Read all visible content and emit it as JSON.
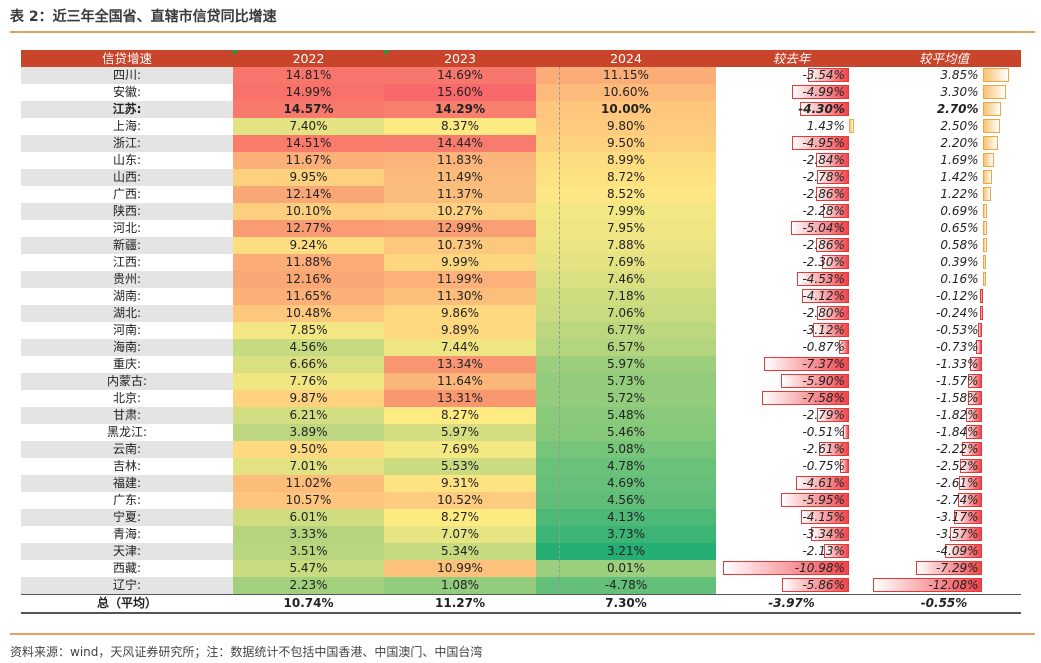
{
  "title": "表 2：近三年全国省、直辖市信贷同比增速",
  "footnote": "资料来源：wind，天风证券研究所；注：数据统计不包括中国香港、中国澳门、中国台湾",
  "headers": {
    "name": "信贷增速",
    "y2022": "2022",
    "y2023": "2023",
    "y2024": "2024",
    "dy": "较去年",
    "da": "较平均值"
  },
  "colors": {
    "header": "#c8442a",
    "rule": "#e8a060",
    "neg_bar": "#f0454c",
    "pos_bar": "#f9c271"
  },
  "rows": [
    {
      "name": "四川:",
      "v2022": "14.81%",
      "v2023": "14.69%",
      "v2024": "11.15%",
      "dy": "-3.54%",
      "da": "3.85%",
      "dyv": -3.54,
      "dav": 3.85,
      "c1": "#f8756b",
      "c2": "#f8776c",
      "c3": "#fbad78"
    },
    {
      "name": "安徽:",
      "v2022": "14.99%",
      "v2023": "15.60%",
      "v2024": "10.60%",
      "dy": "-4.99%",
      "da": "3.30%",
      "dyv": -4.99,
      "dav": 3.3,
      "c1": "#f8716a",
      "c2": "#f8696b",
      "c3": "#fcba7b"
    },
    {
      "name": "江苏:",
      "v2022": "14.57%",
      "v2023": "14.29%",
      "v2024": "10.00%",
      "dy": "-4.30%",
      "da": "2.70%",
      "dyv": -4.3,
      "dav": 2.7,
      "c1": "#f87a6c",
      "c2": "#f87f6d",
      "c3": "#fec77d",
      "bold": true
    },
    {
      "name": "上海:",
      "v2022": "7.40%",
      "v2023": "8.37%",
      "v2024": "9.80%",
      "dy": "1.43%",
      "da": "2.50%",
      "dyv": 1.43,
      "dav": 2.5,
      "c1": "#e3e383",
      "c2": "#feea83",
      "c3": "#fecb7e"
    },
    {
      "name": "浙江:",
      "v2022": "14.51%",
      "v2023": "14.44%",
      "v2024": "9.50%",
      "dy": "-4.95%",
      "da": "2.20%",
      "dyv": -4.95,
      "dav": 2.2,
      "c1": "#f87b6c",
      "c2": "#f87c6d",
      "c3": "#fed17f"
    },
    {
      "name": "山东:",
      "v2022": "11.67%",
      "v2023": "11.83%",
      "v2024": "8.99%",
      "dy": "-2.84%",
      "da": "1.69%",
      "dyv": -2.84,
      "dav": 1.69,
      "c1": "#fbb078",
      "c2": "#fbb479",
      "c3": "#fedd81"
    },
    {
      "name": "山西:",
      "v2022": "9.95%",
      "v2023": "11.49%",
      "v2024": "8.72%",
      "dy": "-2.78%",
      "da": "1.42%",
      "dyv": -2.78,
      "dav": 1.42,
      "c1": "#fed17f",
      "c2": "#fbbb7b",
      "c3": "#fee282"
    },
    {
      "name": "广西:",
      "v2022": "12.14%",
      "v2023": "11.37%",
      "v2024": "8.52%",
      "dy": "-2.86%",
      "da": "1.22%",
      "dyv": -2.86,
      "dav": 1.22,
      "c1": "#faa776",
      "c2": "#fbbd7b",
      "c3": "#fde683"
    },
    {
      "name": "陕西:",
      "v2022": "10.10%",
      "v2023": "10.27%",
      "v2024": "7.99%",
      "dy": "-2.28%",
      "da": "0.69%",
      "dyv": -2.28,
      "dav": 0.69,
      "c1": "#fdce7e",
      "c2": "#fdd17f",
      "c3": "#f1e783"
    },
    {
      "name": "河北:",
      "v2022": "12.77%",
      "v2023": "12.99%",
      "v2024": "7.95%",
      "dy": "-5.04%",
      "da": "0.65%",
      "dyv": -5.04,
      "dav": 0.65,
      "c1": "#f99b73",
      "c2": "#fa9f74",
      "c3": "#efe683"
    },
    {
      "name": "新疆:",
      "v2022": "9.24%",
      "v2023": "10.73%",
      "v2024": "7.88%",
      "dy": "-2.86%",
      "da": "0.58%",
      "dyv": -2.86,
      "dav": 0.58,
      "c1": "#fede81",
      "c2": "#fcc87d",
      "c3": "#ece583"
    },
    {
      "name": "江西:",
      "v2022": "11.88%",
      "v2023": "9.99%",
      "v2024": "7.69%",
      "dy": "-2.30%",
      "da": "0.39%",
      "dyv": -2.3,
      "dav": 0.39,
      "c1": "#fbac77",
      "c2": "#fdd680",
      "c3": "#e4e383"
    },
    {
      "name": "贵州:",
      "v2022": "12.16%",
      "v2023": "11.99%",
      "v2024": "7.46%",
      "dy": "-4.53%",
      "da": "0.16%",
      "dyv": -4.53,
      "dav": 0.16,
      "c1": "#faa776",
      "c2": "#fbb179",
      "c3": "#dae081"
    },
    {
      "name": "湖南:",
      "v2022": "11.65%",
      "v2023": "11.30%",
      "v2024": "7.18%",
      "dy": "-4.12%",
      "da": "-0.12%",
      "dyv": -4.12,
      "dav": -0.12,
      "c1": "#fbb078",
      "c2": "#fbbe7b",
      "c3": "#cedd80"
    },
    {
      "name": "湖北:",
      "v2022": "10.48%",
      "v2023": "9.86%",
      "v2024": "7.06%",
      "dy": "-2.80%",
      "da": "-0.24%",
      "dyv": -2.8,
      "dav": -0.24,
      "c1": "#fdc77d",
      "c2": "#fed980",
      "c3": "#c8db7f"
    },
    {
      "name": "河南:",
      "v2022": "7.85%",
      "v2023": "9.89%",
      "v2024": "6.77%",
      "dy": "-3.12%",
      "da": "-0.53%",
      "dyv": -3.12,
      "dav": -0.53,
      "c1": "#f2e783",
      "c2": "#fed880",
      "c3": "#bcd87f"
    },
    {
      "name": "海南:",
      "v2022": "4.56%",
      "v2023": "7.44%",
      "v2024": "6.57%",
      "dy": "-0.87%",
      "da": "-0.73%",
      "dyv": -0.87,
      "dav": -0.73,
      "c1": "#c6da7f",
      "c2": "#eee683",
      "c3": "#b3d57e"
    },
    {
      "name": "重庆:",
      "v2022": "6.66%",
      "v2023": "13.34%",
      "v2024": "5.97%",
      "dy": "-7.37%",
      "da": "-1.33%",
      "dyv": -7.37,
      "dav": -1.33,
      "c1": "#dae081",
      "c2": "#f99671",
      "c3": "#9ccf7d"
    },
    {
      "name": "内蒙古:",
      "v2022": "7.76%",
      "v2023": "11.64%",
      "v2024": "5.73%",
      "dy": "-5.90%",
      "da": "-1.57%",
      "dyv": -5.9,
      "dav": -1.57,
      "c1": "#f0e783",
      "c2": "#fbb779",
      "c3": "#92cc7c"
    },
    {
      "name": "北京:",
      "v2022": "9.87%",
      "v2023": "13.31%",
      "v2024": "5.72%",
      "dy": "-7.58%",
      "da": "-1.58%",
      "dyv": -7.58,
      "dav": -1.58,
      "c1": "#fed27f",
      "c2": "#f99771",
      "c3": "#92cc7c"
    },
    {
      "name": "甘肃:",
      "v2022": "6.21%",
      "v2023": "8.27%",
      "v2024": "5.48%",
      "dy": "-2.79%",
      "da": "-1.82%",
      "dyv": -2.79,
      "dav": -1.82,
      "c1": "#d2de81",
      "c2": "#feec83",
      "c3": "#88c97b"
    },
    {
      "name": "黑龙江:",
      "v2022": "3.89%",
      "v2023": "5.97%",
      "v2024": "5.46%",
      "dy": "-0.51%",
      "da": "-1.84%",
      "dyv": -0.51,
      "dav": -1.84,
      "c1": "#bcd77f",
      "c2": "#d4de81",
      "c3": "#87c97b"
    },
    {
      "name": "云南:",
      "v2022": "9.50%",
      "v2023": "7.69%",
      "v2024": "5.08%",
      "dy": "-2.61%",
      "da": "-2.22%",
      "dyv": -2.61,
      "dav": -2.22,
      "c1": "#fed980",
      "c2": "#f4e883",
      "c3": "#77c57a"
    },
    {
      "name": "吉林:",
      "v2022": "7.01%",
      "v2023": "5.53%",
      "v2024": "4.78%",
      "dy": "-0.75%",
      "da": "-2.52%",
      "dyv": -0.75,
      "dav": -2.52,
      "c1": "#e2e282",
      "c2": "#cadb80",
      "c3": "#6ac179"
    },
    {
      "name": "福建:",
      "v2022": "11.02%",
      "v2023": "9.31%",
      "v2024": "4.69%",
      "dy": "-4.61%",
      "da": "-2.61%",
      "dyv": -4.61,
      "dav": -2.61,
      "c1": "#fcbd7b",
      "c2": "#fee382",
      "c3": "#66c079"
    },
    {
      "name": "广东:",
      "v2022": "10.57%",
      "v2023": "10.52%",
      "v2024": "4.56%",
      "dy": "-5.95%",
      "da": "-2.74%",
      "dyv": -5.95,
      "dav": -2.74,
      "c1": "#fdc57d",
      "c2": "#fdcc7e",
      "c3": "#60be78"
    },
    {
      "name": "宁夏:",
      "v2022": "6.01%",
      "v2023": "8.27%",
      "v2024": "4.13%",
      "dy": "-4.15%",
      "da": "-3.17%",
      "dyv": -4.15,
      "dav": -3.17,
      "c1": "#cfdd80",
      "c2": "#feec83",
      "c3": "#4db977"
    },
    {
      "name": "青海:",
      "v2022": "3.33%",
      "v2023": "7.07%",
      "v2024": "3.73%",
      "dy": "-3.34%",
      "da": "-3.57%",
      "dyv": -3.34,
      "dav": -3.57,
      "c1": "#b4d57e",
      "c2": "#e6e483",
      "c3": "#3bb476"
    },
    {
      "name": "天津:",
      "v2022": "3.51%",
      "v2023": "5.34%",
      "v2024": "3.21%",
      "dy": "-2.13%",
      "da": "-4.09%",
      "dyv": -2.13,
      "dav": -4.09,
      "c1": "#b7d67e",
      "c2": "#c6da80",
      "c3": "#25ae74"
    },
    {
      "name": "西藏:",
      "v2022": "5.47%",
      "v2023": "10.99%",
      "v2024": "0.01%",
      "dy": "-10.98%",
      "da": "-7.29%",
      "dyv": -10.98,
      "dav": -7.29,
      "c1": "#c8db7f",
      "c2": "#fcc27c",
      "c3": "#9ccf7d"
    },
    {
      "name": "辽宁:",
      "v2022": "2.23%",
      "v2023": "1.08%",
      "v2024": "-4.78%",
      "dy": "-5.86%",
      "da": "-12.08%",
      "dyv": -5.86,
      "dav": -12.08,
      "c1": "#a2d07d",
      "c2": "#93cc7c",
      "c3": "#63bf79"
    }
  ],
  "total": {
    "name": "总（平均）",
    "v2022": "10.74%",
    "v2023": "11.27%",
    "v2024": "7.30%",
    "dy": "-3.97%",
    "da": "-0.55%"
  }
}
